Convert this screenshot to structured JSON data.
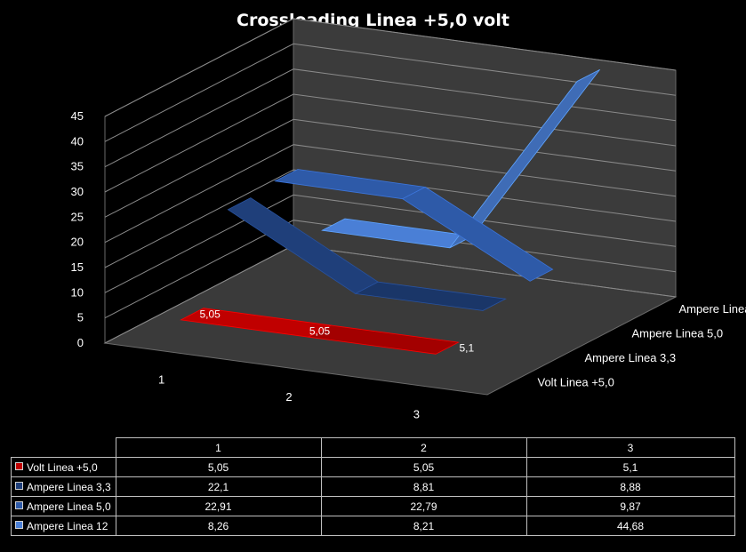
{
  "chart_data": {
    "type": "line",
    "variant": "3d-ribbon",
    "title": "Crossloading  Linea +5,0 volt",
    "categories": [
      "1",
      "2",
      "3"
    ],
    "ylim": [
      0,
      45
    ],
    "yticks": [
      "0",
      "5",
      "10",
      "15",
      "20",
      "25",
      "30",
      "35",
      "40",
      "45"
    ],
    "grid": true,
    "series": [
      {
        "name": "Volt Linea +5,0",
        "display": [
          "5,05",
          "5,05",
          "5,1"
        ],
        "values": [
          5.05,
          5.05,
          5.1
        ],
        "color": "#c00000",
        "show_labels": true
      },
      {
        "name": "Ampere Linea 3,3",
        "display": [
          "22,1",
          "8,81",
          "8,88"
        ],
        "values": [
          22.1,
          8.81,
          8.88
        ],
        "color": "#1f3f7a",
        "show_labels": false
      },
      {
        "name": "Ampere Linea 5,0",
        "display": [
          "22,91",
          "22,79",
          "9,87"
        ],
        "values": [
          22.91,
          22.79,
          9.87
        ],
        "color": "#2e5aa8",
        "show_labels": false
      },
      {
        "name": "Ampere Linea 12",
        "display": [
          "8,26",
          "8,21",
          "44,68"
        ],
        "values": [
          8.26,
          8.21,
          44.68
        ],
        "color": "#4a7fd6",
        "show_labels": false
      }
    ]
  }
}
